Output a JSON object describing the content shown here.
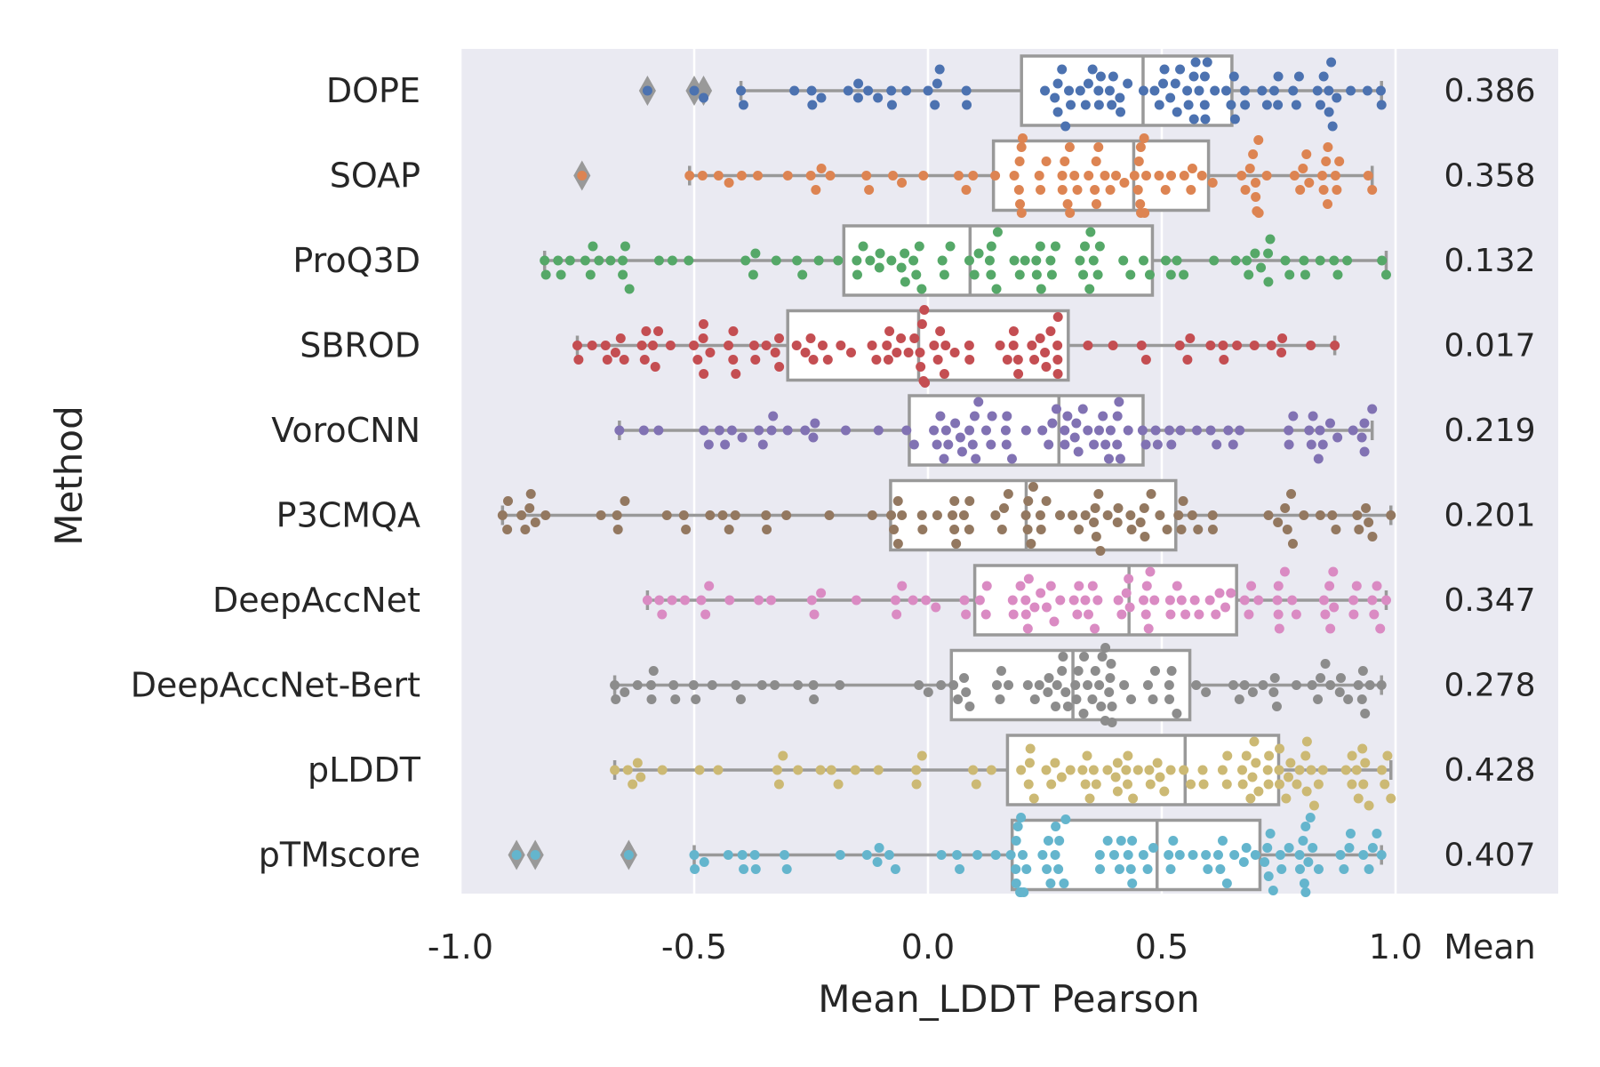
{
  "chart_data": {
    "type": "box",
    "orientation": "horizontal",
    "xlabel": "Mean_LDDT Pearson",
    "ylabel": "Method",
    "xlim": [
      -1.0,
      1.0
    ],
    "x_ticks": [
      "-1.0",
      "-0.5",
      "0.0",
      "0.5",
      "1.0"
    ],
    "mean_column_label": "Mean",
    "grid": true,
    "background": "#EAEAF2",
    "box_color": "#999999",
    "methods": [
      {
        "name": "DOPE",
        "mean": "0.386",
        "color": "#4C72B0",
        "whisker_low": -0.4,
        "q1": 0.2,
        "median": 0.46,
        "q3": 0.65,
        "whisker_high": 0.97,
        "outliers": [
          -0.6,
          -0.5,
          -0.48
        ],
        "n_points": 90
      },
      {
        "name": "SOAP",
        "mean": "0.358",
        "color": "#DD8452",
        "whisker_low": -0.51,
        "q1": 0.14,
        "median": 0.44,
        "q3": 0.6,
        "whisker_high": 0.95,
        "outliers": [
          -0.74
        ],
        "n_points": 90
      },
      {
        "name": "ProQ3D",
        "mean": "0.132",
        "color": "#55A868",
        "whisker_low": -0.82,
        "q1": -0.18,
        "median": 0.09,
        "q3": 0.48,
        "whisker_high": 0.98,
        "outliers": [],
        "n_points": 95
      },
      {
        "name": "SBROD",
        "mean": "0.017",
        "color": "#C44E52",
        "whisker_low": -0.75,
        "q1": -0.3,
        "median": -0.02,
        "q3": 0.3,
        "whisker_high": 0.87,
        "outliers": [],
        "n_points": 95
      },
      {
        "name": "VoroCNN",
        "mean": "0.219",
        "color": "#8172B3",
        "whisker_low": -0.66,
        "q1": -0.04,
        "median": 0.28,
        "q3": 0.46,
        "whisker_high": 0.95,
        "outliers": [],
        "n_points": 95
      },
      {
        "name": "P3CMQA",
        "mean": "0.201",
        "color": "#937860",
        "whisker_low": -0.91,
        "q1": -0.08,
        "median": 0.21,
        "q3": 0.53,
        "whisker_high": 0.99,
        "outliers": [],
        "n_points": 95
      },
      {
        "name": "DeepAccNet",
        "mean": "0.347",
        "color": "#DA8BC3",
        "whisker_low": -0.6,
        "q1": 0.1,
        "median": 0.43,
        "q3": 0.66,
        "whisker_high": 0.98,
        "outliers": [],
        "n_points": 95
      },
      {
        "name": "DeepAccNet-Bert",
        "mean": "0.278",
        "color": "#8C8C8C",
        "whisker_low": -0.67,
        "q1": 0.05,
        "median": 0.31,
        "q3": 0.56,
        "whisker_high": 0.97,
        "outliers": [],
        "n_points": 95
      },
      {
        "name": "pLDDT",
        "mean": "0.428",
        "color": "#CCB974",
        "whisker_low": -0.67,
        "q1": 0.17,
        "median": 0.55,
        "q3": 0.75,
        "whisker_high": 0.99,
        "outliers": [],
        "n_points": 100
      },
      {
        "name": "pTMscore",
        "mean": "0.407",
        "color": "#64B5CD",
        "whisker_low": -0.5,
        "q1": 0.18,
        "median": 0.49,
        "q3": 0.71,
        "whisker_high": 0.97,
        "outliers": [
          -0.88,
          -0.84,
          -0.64
        ],
        "n_points": 100
      }
    ]
  }
}
